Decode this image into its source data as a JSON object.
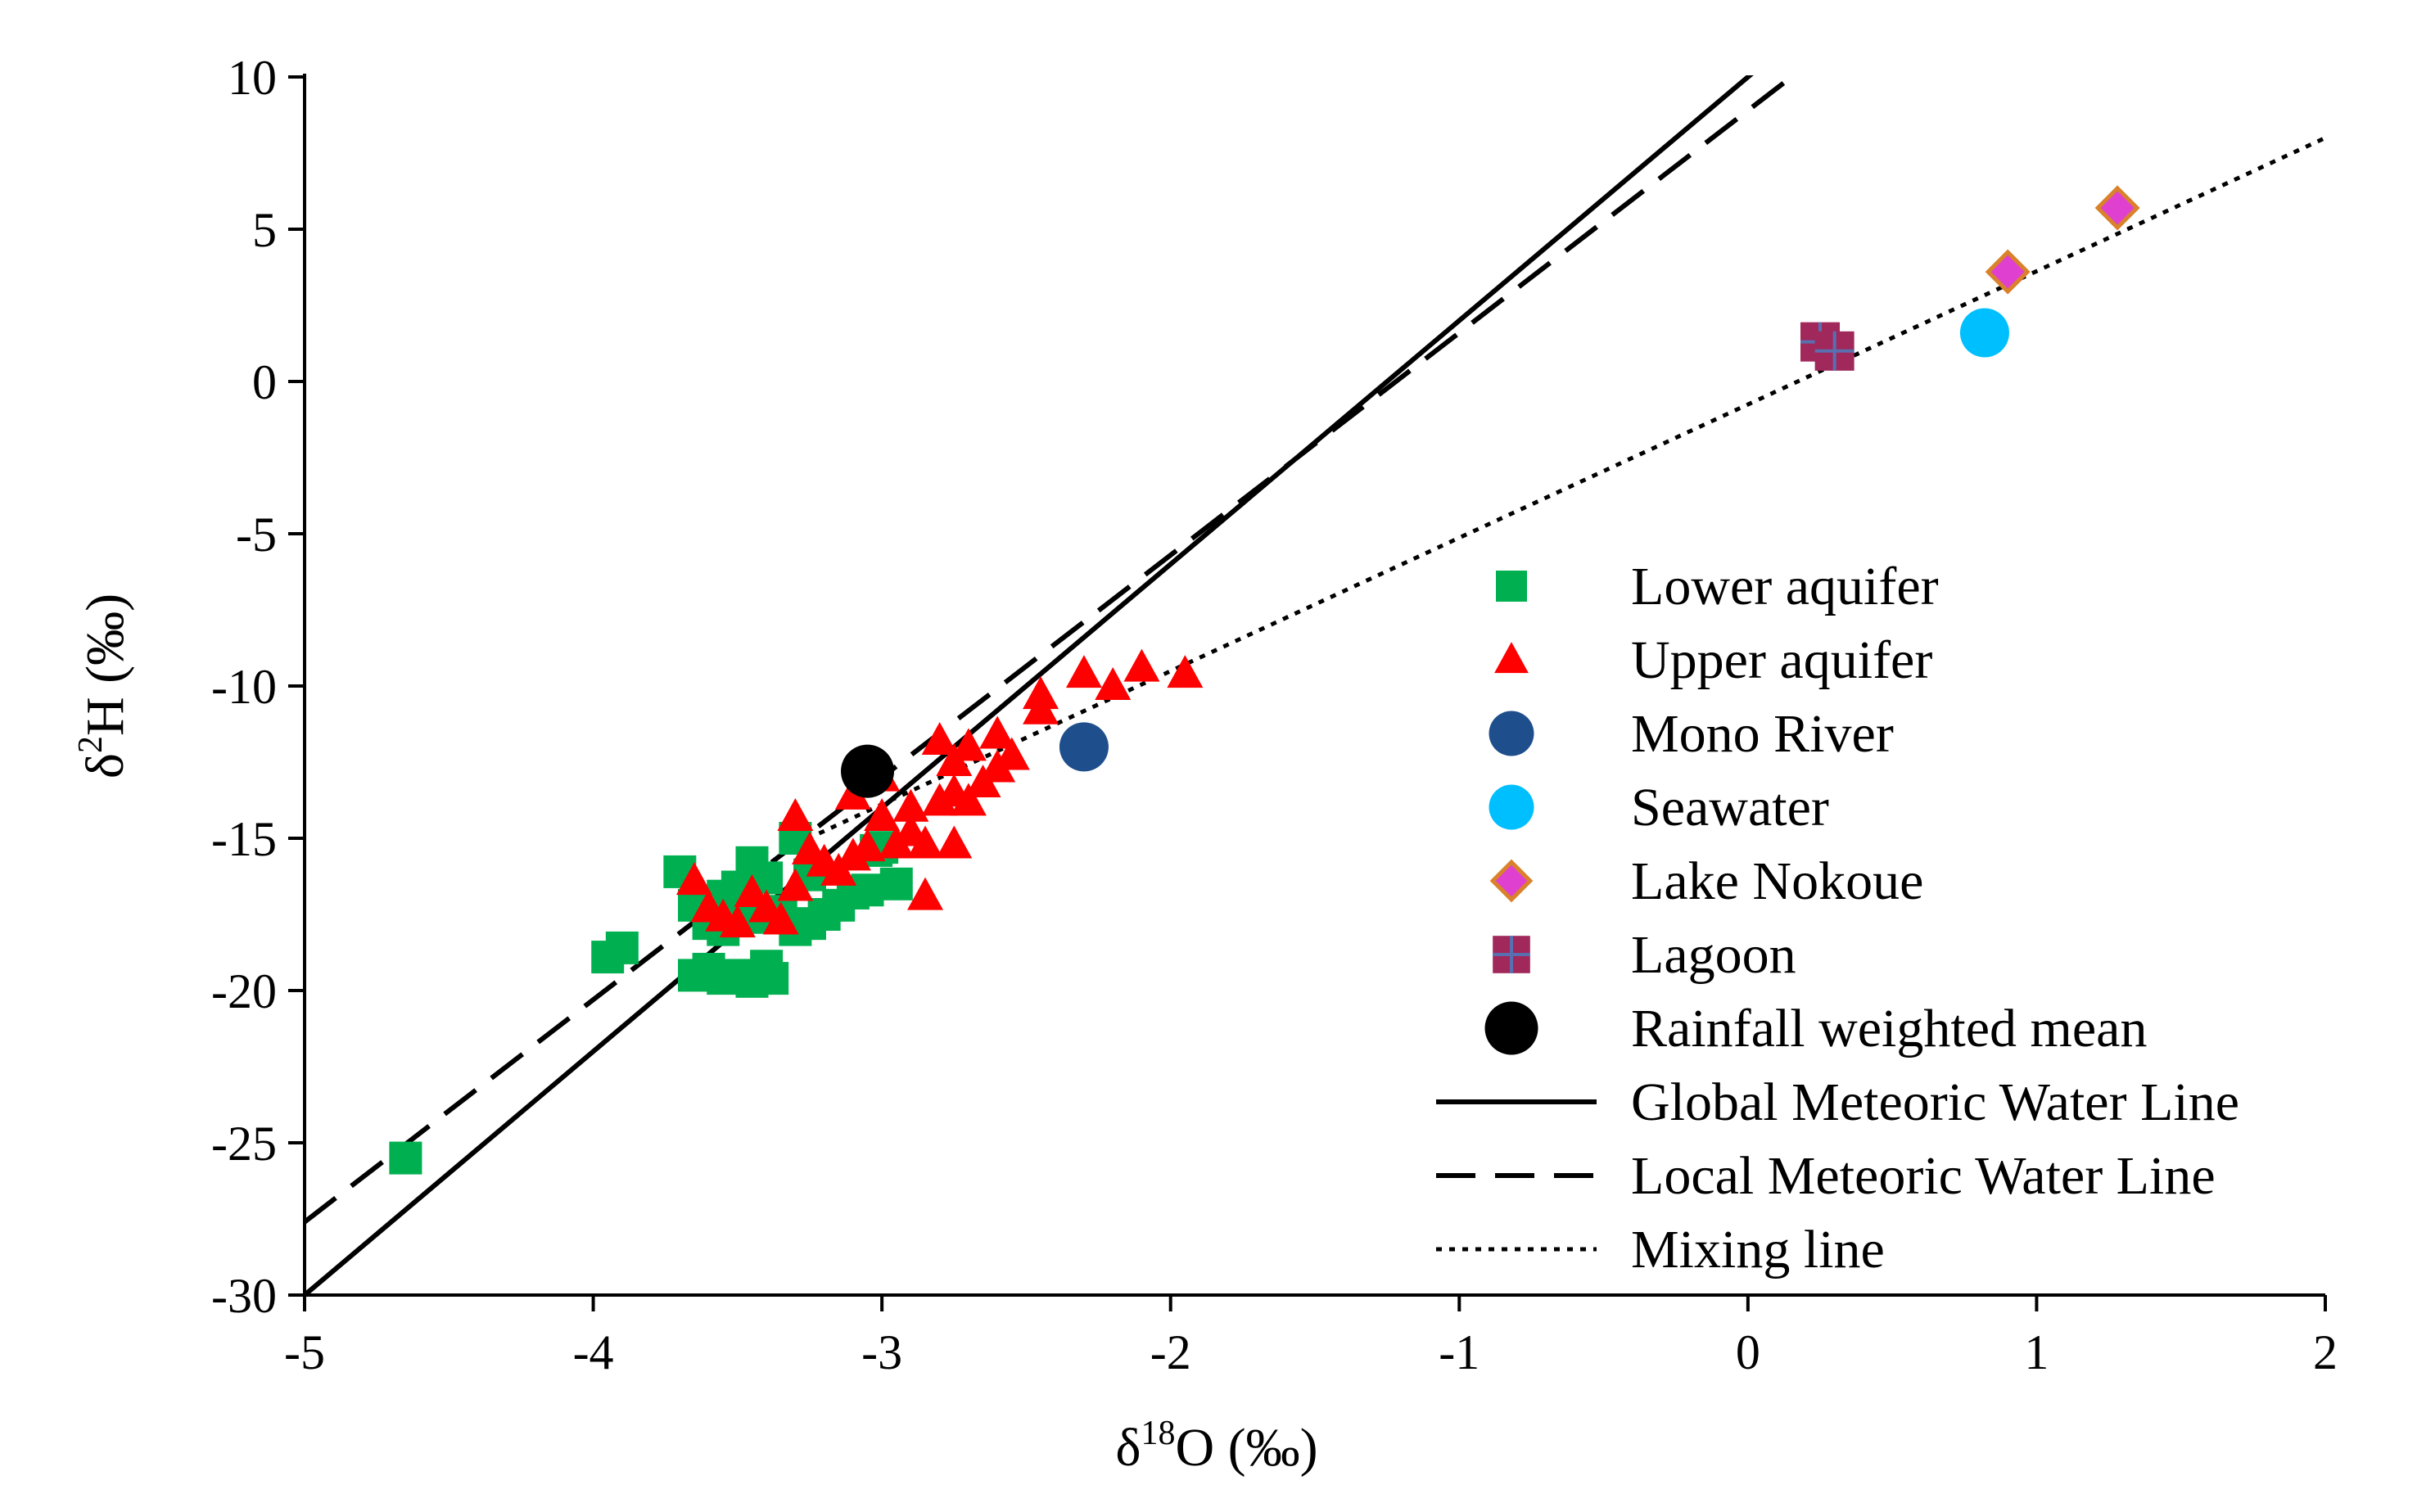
{
  "chart_data": {
    "type": "scatter",
    "title": "",
    "xlabel": "δ18O (‰)",
    "ylabel": "δ2H (‰)",
    "xlabel_parts": {
      "prefix": "δ",
      "sup": "18",
      "suffix": "O (‰)"
    },
    "ylabel_parts": {
      "prefix": "δ",
      "sup": "2",
      "suffix": "H (‰)"
    },
    "xlim": [
      -5,
      2
    ],
    "ylim": [
      -30,
      10
    ],
    "xticks": [
      -5,
      -4,
      -3,
      -2,
      -1,
      0,
      1,
      2
    ],
    "xtick_labels": [
      "-5",
      "-4",
      "-3",
      "-2",
      "-1",
      "0",
      "1",
      "2"
    ],
    "yticks": [
      -30,
      -25,
      -20,
      -15,
      -10,
      -5,
      0,
      5,
      10
    ],
    "ytick_labels": [
      "-30",
      "-25",
      "-20",
      "-15",
      "-10",
      "-5",
      "0",
      "5",
      "10"
    ],
    "grid": false,
    "legend_position": "center-right",
    "series": [
      {
        "name": "Lower aquifer",
        "marker": "square",
        "color": "#00b050",
        "points": [
          [
            -4.65,
            -25.5
          ],
          [
            -3.9,
            -18.6
          ],
          [
            -3.95,
            -18.9
          ],
          [
            -3.7,
            -16.1
          ],
          [
            -3.65,
            -17.2
          ],
          [
            -3.6,
            -17.8
          ],
          [
            -3.55,
            -16.9
          ],
          [
            -3.5,
            -16.6
          ],
          [
            -3.45,
            -15.8
          ],
          [
            -3.4,
            -16.3
          ],
          [
            -3.35,
            -17.4
          ],
          [
            -3.3,
            -18.0
          ],
          [
            -3.25,
            -16.2
          ],
          [
            -3.2,
            -17.5
          ],
          [
            -3.15,
            -17.2
          ],
          [
            -3.1,
            -16.8
          ],
          [
            -3.05,
            -16.7
          ],
          [
            -3.0,
            -15.3
          ],
          [
            -2.95,
            -16.5
          ],
          [
            -3.3,
            -15.0
          ],
          [
            -3.25,
            -17.8
          ],
          [
            -3.45,
            -17.6
          ],
          [
            -3.55,
            -18.0
          ],
          [
            -3.65,
            -19.5
          ],
          [
            -3.6,
            -19.3
          ],
          [
            -3.55,
            -19.6
          ],
          [
            -3.5,
            -19.5
          ],
          [
            -3.45,
            -19.7
          ],
          [
            -3.4,
            -19.2
          ],
          [
            -3.38,
            -19.6
          ],
          [
            -3.48,
            -17.3
          ],
          [
            -3.02,
            -15.4
          ]
        ]
      },
      {
        "name": "Upper aquifer",
        "marker": "triangle",
        "color": "#ff0000",
        "points": [
          [
            -3.65,
            -16.4
          ],
          [
            -3.6,
            -17.3
          ],
          [
            -3.55,
            -17.6
          ],
          [
            -3.5,
            -17.8
          ],
          [
            -3.45,
            -16.8
          ],
          [
            -3.4,
            -17.3
          ],
          [
            -3.35,
            -17.7
          ],
          [
            -3.3,
            -16.6
          ],
          [
            -3.25,
            -15.4
          ],
          [
            -3.3,
            -14.3
          ],
          [
            -3.2,
            -15.8
          ],
          [
            -3.15,
            -16.1
          ],
          [
            -3.1,
            -15.6
          ],
          [
            -3.05,
            -15.3
          ],
          [
            -3.0,
            -14.3
          ],
          [
            -2.95,
            -15.2
          ],
          [
            -2.9,
            -14.8
          ],
          [
            -2.85,
            -15.2
          ],
          [
            -2.8,
            -13.8
          ],
          [
            -2.75,
            -13.5
          ],
          [
            -2.7,
            -13.8
          ],
          [
            -2.65,
            -13.2
          ],
          [
            -2.6,
            -12.7
          ],
          [
            -2.55,
            -12.3
          ],
          [
            -2.6,
            -11.6
          ],
          [
            -2.7,
            -12.0
          ],
          [
            -2.75,
            -12.5
          ],
          [
            -2.8,
            -11.8
          ],
          [
            -2.45,
            -10.3
          ],
          [
            -2.45,
            -10.8
          ],
          [
            -2.3,
            -9.6
          ],
          [
            -2.2,
            -10.0
          ],
          [
            -2.1,
            -9.4
          ],
          [
            -1.95,
            -9.6
          ],
          [
            -2.85,
            -16.9
          ],
          [
            -2.75,
            -15.2
          ],
          [
            -3.0,
            -13.0
          ],
          [
            -3.1,
            -13.6
          ],
          [
            -2.9,
            -14.0
          ]
        ]
      },
      {
        "name": "Mono River",
        "marker": "circle",
        "color": "#1f4e8c",
        "points": [
          [
            -2.3,
            -12.0
          ]
        ]
      },
      {
        "name": "Seawater",
        "marker": "circle",
        "color": "#00bfff",
        "points": [
          [
            0.82,
            1.6
          ]
        ]
      },
      {
        "name": "Lake Nokoue",
        "marker": "diamond",
        "color": "#e040d0",
        "edge": "#d9822b",
        "points": [
          [
            0.9,
            3.6
          ],
          [
            1.28,
            5.7
          ]
        ]
      },
      {
        "name": "Lagoon",
        "marker": "square-cross",
        "color": "#a0285a",
        "points": [
          [
            0.25,
            1.3
          ],
          [
            0.3,
            1.0
          ]
        ]
      },
      {
        "name": "Rainfall weighted mean",
        "marker": "circle",
        "color": "#000000",
        "points": [
          [
            -3.05,
            -12.8
          ]
        ]
      }
    ],
    "lines": [
      {
        "name": "Global Meteoric Water Line",
        "style": "solid",
        "slope": 8,
        "intercept": 10
      },
      {
        "name": "Local Meteoric Water Line",
        "style": "dashed",
        "slope": 7.3,
        "intercept": 8.9
      },
      {
        "name": "Mixing line",
        "style": "dotted",
        "from": [
          -3.3,
          -15.2
        ],
        "to": [
          2.0,
          8.0
        ]
      }
    ]
  }
}
